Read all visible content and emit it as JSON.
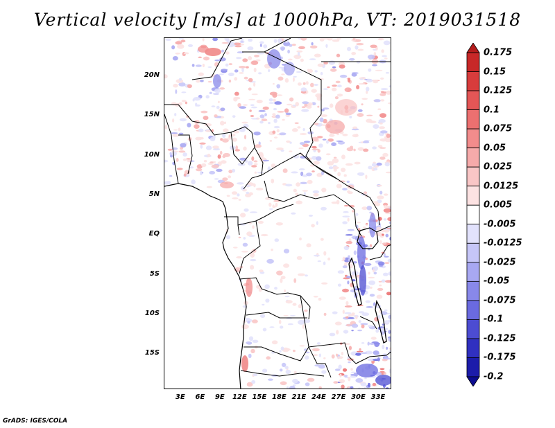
{
  "title": "Vertical velocity [m/s] at 1000hPa, VT: 2019031518",
  "footer": "GrADS: IGES/COLA",
  "lat_labels": [
    "20N",
    "15N",
    "10N",
    "5N",
    "EQ",
    "5S",
    "10S",
    "15S"
  ],
  "lat_values": [
    20,
    15,
    10,
    5,
    0,
    -5,
    -10,
    -15
  ],
  "lon_labels": [
    "3E",
    "6E",
    "9E",
    "12E",
    "15E",
    "18E",
    "21E",
    "24E",
    "27E",
    "30E",
    "33E"
  ],
  "lon_values": [
    3,
    6,
    9,
    12,
    15,
    18,
    21,
    24,
    27,
    30,
    33
  ],
  "colorbar": {
    "labels": [
      "0.175",
      "0.15",
      "0.125",
      "0.1",
      "0.075",
      "0.05",
      "0.025",
      "0.0125",
      "0.005",
      "-0.005",
      "-0.0125",
      "-0.025",
      "-0.05",
      "-0.075",
      "-0.1",
      "-0.125",
      "-0.175",
      "-0.2"
    ],
    "colors": [
      "#b41c1c",
      "#c82828",
      "#d83c3c",
      "#e45656",
      "#ec7070",
      "#f28c8c",
      "#f6aaaa",
      "#f9c6c6",
      "#fce2e2",
      "#ffffff",
      "#e2e2fc",
      "#c6c6f8",
      "#a8a8f2",
      "#8888ea",
      "#6a6ae0",
      "#4c4cd2",
      "#3030c0",
      "#1c1caa",
      "#0c0c90"
    ]
  },
  "map": {
    "lon_range": [
      0.5,
      35
    ],
    "lat_range": [
      -19.5,
      24.8
    ]
  }
}
